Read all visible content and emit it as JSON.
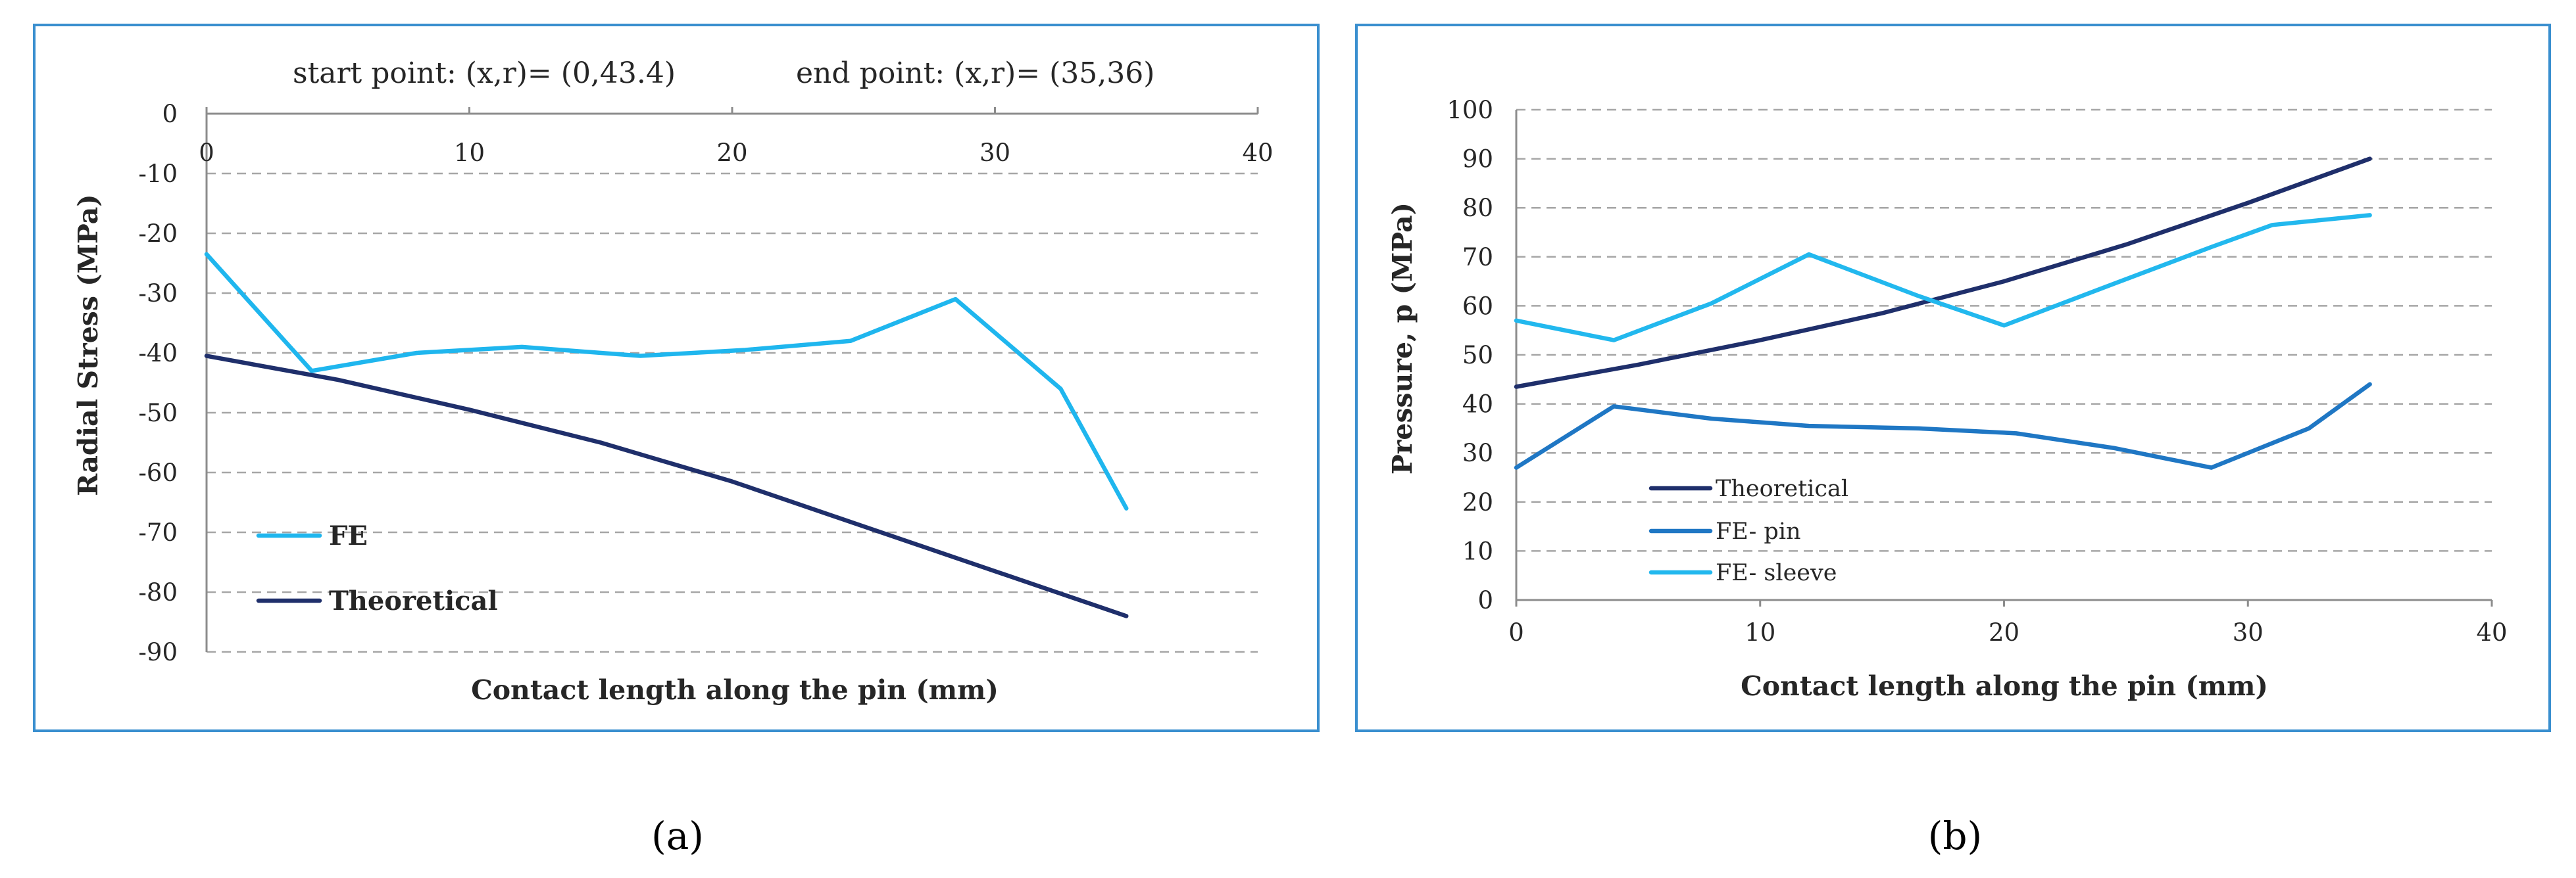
{
  "colors": {
    "theoretical": "#1f2f6b",
    "fe": "#1fb6ee",
    "fe_pin": "#1f77c4",
    "fe_sleeve": "#22b8ee",
    "frame": "#3a8fcf"
  },
  "captions": {
    "a": "(a)",
    "b": "(b)"
  },
  "chart_data": [
    {
      "type": "line",
      "annotation_start": "start point: (x,r)= (0,43.4)",
      "annotation_end": "end point: (x,r)= (35,36)",
      "xlabel": "Contact length along the pin (mm)",
      "ylabel": "Radial  Stress  (MPa)",
      "xlim": [
        0,
        40
      ],
      "ylim": [
        -90,
        0
      ],
      "x_ticks": [
        "0",
        "10",
        "20",
        "30",
        "40"
      ],
      "y_ticks": [
        "0",
        "-10",
        "-20",
        "-30",
        "-40",
        "-50",
        "-60",
        "-70",
        "-80",
        "-90"
      ],
      "legend": [
        "FE",
        "Theoretical"
      ],
      "series": [
        {
          "name": "FE",
          "x": [
            0,
            4,
            8,
            12,
            16.5,
            20.5,
            24.5,
            28.5,
            32.5,
            35
          ],
          "y": [
            -23.5,
            -43,
            -40,
            -39,
            -40.5,
            -39.5,
            -38,
            -31,
            -46,
            -66
          ]
        },
        {
          "name": "Theoretical",
          "x": [
            0,
            5,
            10,
            15,
            20,
            25,
            30,
            35
          ],
          "y": [
            -40.5,
            -44.5,
            -49.5,
            -55,
            -61.5,
            -69,
            -76.5,
            -84
          ]
        }
      ]
    },
    {
      "type": "line",
      "xlabel": "Contact length along the pin (mm)",
      "ylabel": "Pressure, p  (MPa)",
      "xlim": [
        0,
        40
      ],
      "ylim": [
        0,
        100
      ],
      "x_ticks": [
        "0",
        "10",
        "20",
        "30",
        "40"
      ],
      "y_ticks": [
        "0",
        "10",
        "20",
        "30",
        "40",
        "50",
        "60",
        "70",
        "80",
        "90",
        "100"
      ],
      "legend": [
        "Theoretical",
        "FE- pin",
        "FE- sleeve"
      ],
      "series": [
        {
          "name": "Theoretical",
          "x": [
            0,
            5,
            10,
            15,
            20,
            25,
            30,
            35
          ],
          "y": [
            43.5,
            48,
            53,
            58.5,
            65,
            72.5,
            81,
            90
          ]
        },
        {
          "name": "FE- pin",
          "x": [
            0,
            4,
            8,
            12,
            16.5,
            20.5,
            24.5,
            28.5,
            32.5,
            35
          ],
          "y": [
            27,
            39.5,
            37,
            35.5,
            35,
            34,
            31,
            27,
            35,
            44
          ]
        },
        {
          "name": "FE- sleeve",
          "x": [
            0,
            4,
            8,
            12,
            16.5,
            20,
            24.5,
            28.5,
            31,
            35
          ],
          "y": [
            57,
            53,
            60.5,
            70.5,
            62,
            56,
            64.5,
            72,
            76.5,
            78.5
          ]
        }
      ]
    }
  ]
}
